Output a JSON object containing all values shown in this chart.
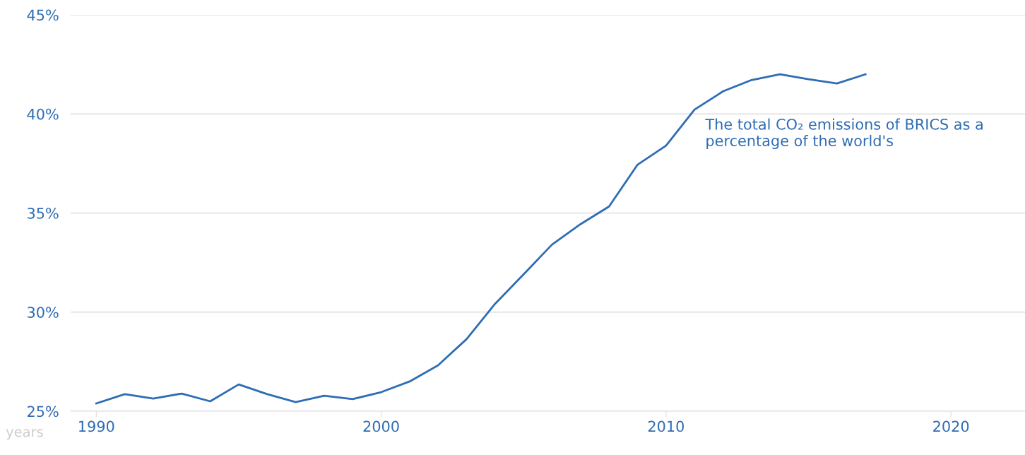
{
  "chart_data": {
    "type": "line",
    "xlabel": "years",
    "x": [
      1990,
      1991,
      1992,
      1993,
      1994,
      1995,
      1996,
      1997,
      1998,
      1999,
      2000,
      2001,
      2002,
      2003,
      2004,
      2005,
      2006,
      2007,
      2008,
      2009,
      2010,
      2011,
      2012,
      2013,
      2014,
      2015,
      2016,
      2017
    ],
    "series": [
      {
        "name": "The total CO₂ emissions of BRICS as a percentage of the world's",
        "color": "#2e6db4",
        "values": [
          25.39,
          25.86,
          25.64,
          25.89,
          25.5,
          26.35,
          25.86,
          25.46,
          25.78,
          25.61,
          25.96,
          26.5,
          27.32,
          28.64,
          30.42,
          31.91,
          33.41,
          34.44,
          35.33,
          37.44,
          38.4,
          40.22,
          41.14,
          41.71,
          42.0,
          41.75,
          41.54,
          42.0
        ]
      }
    ],
    "xlim": [
      1989.1,
      2022.6
    ],
    "xticks": [
      1990,
      2000,
      2010,
      2020
    ],
    "ylim": [
      25,
      45
    ],
    "yticks": [
      {
        "value": 25,
        "label": "25%"
      },
      {
        "value": 30,
        "label": "30%"
      },
      {
        "value": 35,
        "label": "35%"
      },
      {
        "value": 40,
        "label": "40%"
      },
      {
        "value": 45,
        "label": "45%"
      }
    ],
    "grid": "y",
    "legend": false,
    "marker": "none",
    "line_style": "solid"
  }
}
